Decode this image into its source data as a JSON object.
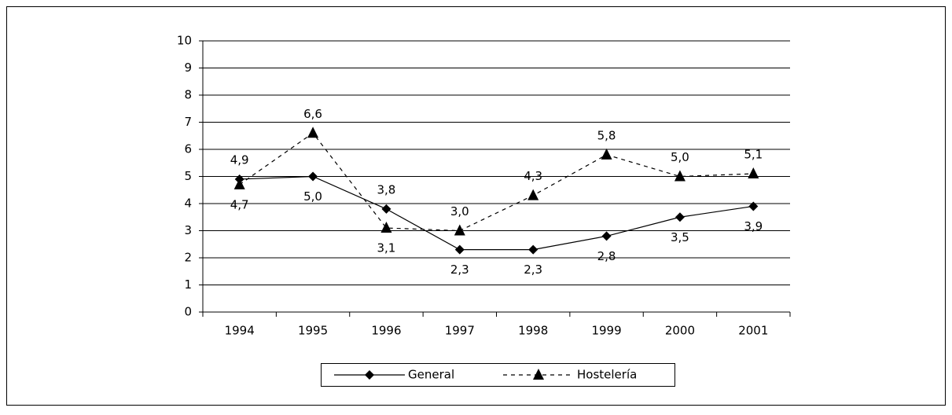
{
  "chart_data": {
    "type": "line",
    "categories": [
      "1994",
      "1995",
      "1996",
      "1997",
      "1998",
      "1999",
      "2000",
      "2001"
    ],
    "series": [
      {
        "name": "General",
        "color": "#000000",
        "marker": "diamond",
        "dash": "solid",
        "values": [
          4.9,
          5.0,
          3.8,
          2.3,
          2.3,
          2.8,
          3.5,
          3.9
        ],
        "value_labels": [
          "4,9",
          "5,0",
          "3,8",
          "2,3",
          "2,3",
          "2,8",
          "3,5",
          "3,9"
        ]
      },
      {
        "name": "Hostelería",
        "color": "#000000",
        "marker": "triangle",
        "dash": "dashed",
        "values": [
          4.7,
          6.6,
          3.1,
          3.0,
          4.3,
          5.8,
          5.0,
          5.1
        ],
        "value_labels": [
          "4,7",
          "6,6",
          "3,1",
          "3,0",
          "4,3",
          "5,8",
          "5,0",
          "5,1"
        ]
      }
    ],
    "ylim": [
      0,
      10
    ],
    "yticks": [
      0,
      1,
      2,
      3,
      4,
      5,
      6,
      7,
      8,
      9,
      10
    ],
    "grid": true,
    "legend": "bottom"
  }
}
